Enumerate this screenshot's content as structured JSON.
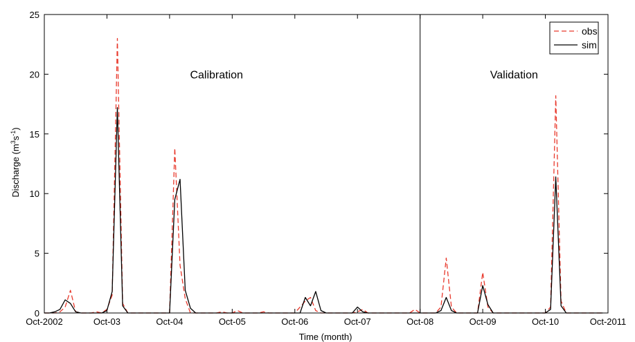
{
  "chart_data": {
    "type": "line",
    "ylabel": "Discharge (m3s-1)",
    "ylabel_parts": {
      "prefix": "Discharge (m",
      "sup1": "3",
      "mid": "s",
      "sup2": "-1",
      "suffix": ")"
    },
    "xlabel": "Time (month)",
    "xlim": [
      0,
      108
    ],
    "ylim": [
      0,
      25
    ],
    "yticks": [
      0,
      5,
      10,
      15,
      20,
      25
    ],
    "xticks": [
      {
        "value": 0,
        "label": "Oct-2002"
      },
      {
        "value": 12,
        "label": "Oct-03"
      },
      {
        "value": 24,
        "label": "Oct-04"
      },
      {
        "value": 36,
        "label": "Oct-05"
      },
      {
        "value": 48,
        "label": "Oct-06"
      },
      {
        "value": 60,
        "label": "Oct-07"
      },
      {
        "value": 72,
        "label": "Oct-08"
      },
      {
        "value": 84,
        "label": "Oct-09"
      },
      {
        "value": 96,
        "label": "Oct-10"
      },
      {
        "value": 108,
        "label": "Oct-2011"
      }
    ],
    "divider_x": 72,
    "regions": [
      {
        "label": "Calibration",
        "x": 33,
        "y": 20
      },
      {
        "label": "Validation",
        "x": 90,
        "y": 20
      }
    ],
    "legend": {
      "position": "top-right"
    },
    "grid": false,
    "series": [
      {
        "name": "obs",
        "color": "#e8382b",
        "style": "dashed",
        "x": [
          0,
          1,
          2,
          3,
          4,
          5,
          6,
          7,
          8,
          9,
          10,
          11,
          12,
          13,
          14,
          15,
          16,
          17,
          18,
          19,
          20,
          21,
          22,
          23,
          24,
          25,
          26,
          27,
          28,
          29,
          30,
          31,
          32,
          33,
          34,
          35,
          36,
          37,
          38,
          39,
          40,
          41,
          42,
          43,
          44,
          45,
          46,
          47,
          48,
          49,
          50,
          51,
          52,
          53,
          54,
          55,
          56,
          57,
          58,
          59,
          60,
          61,
          62,
          63,
          64,
          65,
          66,
          67,
          68,
          69,
          70,
          71,
          72,
          73,
          74,
          75,
          76,
          77,
          78,
          79,
          80,
          81,
          82,
          83,
          84,
          85,
          86,
          87,
          88,
          89,
          90,
          91,
          92,
          93,
          94,
          95,
          96,
          97,
          98,
          99,
          100,
          101,
          102,
          103,
          104,
          105,
          106,
          107
        ],
        "values": [
          0,
          0,
          0,
          0.1,
          0.5,
          1.9,
          0.1,
          0,
          0,
          0,
          0.1,
          0,
          0.3,
          1.5,
          23,
          0.8,
          0,
          0,
          0,
          0,
          0,
          0,
          0,
          0,
          0,
          13.8,
          4,
          1.2,
          0,
          0,
          0,
          0,
          0,
          0,
          0.1,
          0,
          0,
          0.2,
          0,
          0,
          0,
          0,
          0.1,
          0,
          0,
          0,
          0,
          0,
          0,
          0.5,
          1,
          1.3,
          0.2,
          0,
          0,
          0,
          0,
          0,
          0,
          0,
          0.1,
          0.3,
          0,
          0,
          0,
          0,
          0,
          0,
          0,
          0,
          0,
          0.3,
          0,
          0,
          0,
          0,
          0.5,
          4.6,
          0.5,
          0,
          0,
          0,
          0,
          0,
          3.4,
          0.5,
          0,
          0,
          0,
          0,
          0,
          0,
          0,
          0,
          0,
          0,
          0,
          0.5,
          18.2,
          1,
          0,
          0,
          0,
          0,
          0,
          0,
          0,
          0
        ]
      },
      {
        "name": "sim",
        "color": "#000000",
        "style": "solid",
        "x": [
          0,
          1,
          2,
          3,
          4,
          5,
          6,
          7,
          8,
          9,
          10,
          11,
          12,
          13,
          14,
          15,
          16,
          17,
          18,
          19,
          20,
          21,
          22,
          23,
          24,
          25,
          26,
          27,
          28,
          29,
          30,
          31,
          32,
          33,
          34,
          35,
          36,
          37,
          38,
          39,
          40,
          41,
          42,
          43,
          44,
          45,
          46,
          47,
          48,
          49,
          50,
          51,
          52,
          53,
          54,
          55,
          56,
          57,
          58,
          59,
          60,
          61,
          62,
          63,
          64,
          65,
          66,
          67,
          68,
          69,
          70,
          71,
          72,
          73,
          74,
          75,
          76,
          77,
          78,
          79,
          80,
          81,
          82,
          83,
          84,
          85,
          86,
          87,
          88,
          89,
          90,
          91,
          92,
          93,
          94,
          95,
          96,
          97,
          98,
          99,
          100,
          101,
          102,
          103,
          104,
          105,
          106,
          107
        ],
        "values": [
          0,
          0,
          0.1,
          0.3,
          1.1,
          0.8,
          0.1,
          0,
          0,
          0,
          0,
          0,
          0.2,
          1.8,
          17.2,
          0.6,
          0,
          0,
          0,
          0,
          0,
          0,
          0,
          0,
          0,
          9.5,
          11.2,
          1.9,
          0.4,
          0,
          0,
          0,
          0,
          0,
          0,
          0,
          0,
          0,
          0,
          0,
          0,
          0,
          0,
          0,
          0,
          0,
          0,
          0,
          0,
          0,
          1.3,
          0.6,
          1.8,
          0.2,
          0,
          0,
          0,
          0,
          0,
          0,
          0.5,
          0.1,
          0,
          0,
          0,
          0,
          0,
          0,
          0,
          0,
          0,
          0,
          0,
          0,
          0,
          0,
          0.2,
          1.3,
          0.2,
          0,
          0,
          0,
          0,
          0,
          2.3,
          0.7,
          0,
          0,
          0,
          0,
          0,
          0,
          0,
          0,
          0,
          0,
          0,
          0.3,
          11.4,
          0.6,
          0,
          0,
          0,
          0,
          0,
          0,
          0,
          0
        ]
      }
    ]
  }
}
